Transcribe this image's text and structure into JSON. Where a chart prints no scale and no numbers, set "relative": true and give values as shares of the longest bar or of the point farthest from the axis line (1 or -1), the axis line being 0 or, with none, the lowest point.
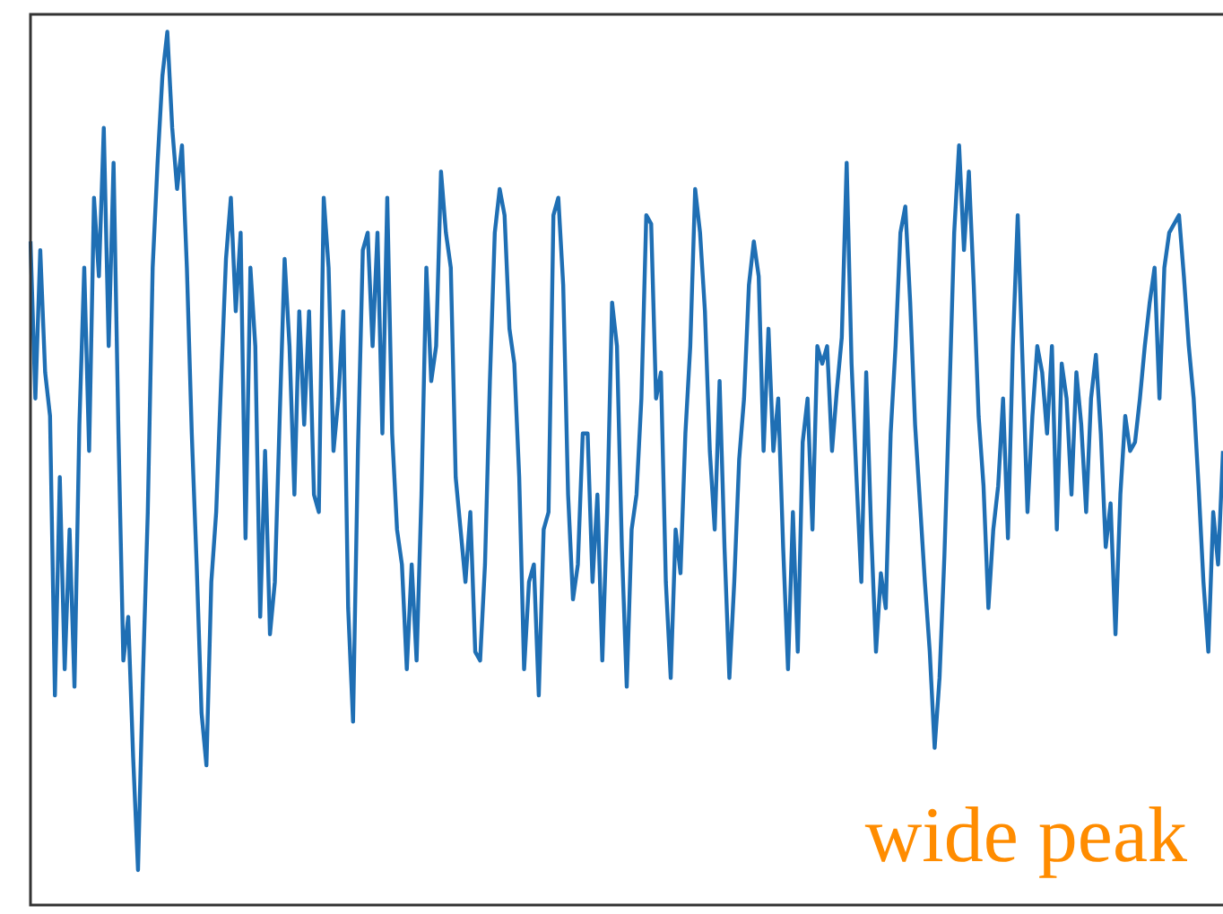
{
  "chart_data": {
    "type": "line",
    "relative": true,
    "categories": [
      null,
      null,
      null,
      null,
      null,
      null,
      null,
      null,
      null,
      null,
      null,
      null,
      null,
      null,
      null,
      null,
      null,
      null,
      null,
      null,
      null,
      null,
      null,
      null,
      null,
      null,
      null,
      null,
      null,
      null,
      null,
      null,
      null,
      null,
      null,
      null,
      null,
      null,
      null,
      null,
      null,
      null,
      null,
      null,
      null,
      null,
      null,
      null,
      null,
      null,
      null,
      null,
      null,
      null,
      null,
      null,
      null,
      null,
      null,
      null,
      null,
      null,
      null,
      null,
      null,
      null,
      null,
      null,
      null,
      null,
      null,
      null,
      null,
      null,
      null,
      null,
      null,
      null,
      null,
      null,
      null,
      null,
      null,
      null,
      null,
      null,
      null,
      null,
      null,
      null,
      null,
      null,
      null,
      null,
      null,
      null,
      null,
      null,
      null,
      null,
      null,
      null,
      null,
      null,
      null,
      null,
      null,
      null,
      null,
      null,
      null,
      null,
      null,
      null,
      null,
      null,
      null,
      null,
      null,
      null,
      null,
      null,
      null,
      null,
      null,
      null,
      null,
      null,
      null,
      null,
      null,
      null,
      null,
      null,
      null,
      null,
      null,
      null,
      null,
      null,
      null,
      null,
      null,
      null,
      null,
      null,
      null,
      null,
      null,
      null,
      null,
      null,
      null,
      null,
      null,
      null,
      null,
      null,
      null,
      null,
      null,
      null,
      null,
      null,
      null,
      null,
      null,
      null,
      null,
      null,
      null,
      null,
      null,
      null,
      null,
      null,
      null,
      null,
      null,
      null,
      null,
      null,
      null,
      null,
      null,
      null,
      null,
      null,
      null,
      null,
      null,
      null,
      null,
      null,
      null,
      null,
      null,
      null,
      null,
      null,
      null,
      null,
      null,
      null,
      null,
      null,
      null,
      null,
      null,
      null,
      null,
      null,
      null,
      null,
      null,
      null,
      null,
      null,
      null,
      null,
      null,
      null,
      null,
      null,
      null,
      null,
      null,
      null,
      null,
      null,
      null,
      null,
      null,
      null,
      null,
      null,
      null,
      null,
      null,
      null,
      null,
      null,
      null,
      null,
      null
    ],
    "series": [
      {
        "color": "#1f6fb4",
        "values": [
          0.76,
          0.58,
          0.75,
          0.61,
          0.56,
          0.24,
          0.49,
          0.27,
          0.43,
          0.25,
          0.55,
          0.73,
          0.52,
          0.81,
          0.72,
          0.89,
          0.64,
          0.85,
          0.54,
          0.28,
          0.33,
          0.17,
          0.04,
          0.26,
          0.45,
          0.73,
          0.85,
          0.95,
          1,
          0.89,
          0.82,
          0.87,
          0.73,
          0.54,
          0.39,
          0.22,
          0.16,
          0.37,
          0.45,
          0.6,
          0.74,
          0.81,
          0.68,
          0.77,
          0.42,
          0.73,
          0.64,
          0.33,
          0.52,
          0.31,
          0.37,
          0.56,
          0.74,
          0.64,
          0.47,
          0.68,
          0.55,
          0.68,
          0.47,
          0.45,
          0.81,
          0.73,
          0.52,
          0.58,
          0.68,
          0.34,
          0.21,
          0.52,
          0.75,
          0.77,
          0.64,
          0.77,
          0.54,
          0.81,
          0.54,
          0.43,
          0.39,
          0.27,
          0.39,
          0.28,
          0.47,
          0.73,
          0.6,
          0.64,
          0.84,
          0.77,
          0.73,
          0.49,
          0.43,
          0.37,
          0.45,
          0.29,
          0.28,
          0.39,
          0.6,
          0.77,
          0.82,
          0.79,
          0.66,
          0.62,
          0.49,
          0.27,
          0.37,
          0.39,
          0.24,
          0.43,
          0.45,
          0.79,
          0.81,
          0.71,
          0.47,
          0.35,
          0.39,
          0.54,
          0.54,
          0.37,
          0.47,
          0.28,
          0.45,
          0.69,
          0.64,
          0.41,
          0.25,
          0.43,
          0.47,
          0.58,
          0.79,
          0.78,
          0.58,
          0.61,
          0.37,
          0.26,
          0.43,
          0.38,
          0.54,
          0.64,
          0.82,
          0.77,
          0.68,
          0.52,
          0.43,
          0.6,
          0.41,
          0.26,
          0.37,
          0.51,
          0.58,
          0.71,
          0.76,
          0.72,
          0.52,
          0.66,
          0.52,
          0.58,
          0.41,
          0.27,
          0.45,
          0.29,
          0.53,
          0.58,
          0.43,
          0.64,
          0.62,
          0.64,
          0.52,
          0.59,
          0.65,
          0.85,
          0.62,
          0.49,
          0.37,
          0.61,
          0.43,
          0.29,
          0.38,
          0.34,
          0.54,
          0.64,
          0.77,
          0.8,
          0.69,
          0.55,
          0.46,
          0.37,
          0.29,
          0.18,
          0.26,
          0.4,
          0.58,
          0.77,
          0.87,
          0.75,
          0.84,
          0.71,
          0.56,
          0.48,
          0.34,
          0.43,
          0.48,
          0.58,
          0.42,
          0.64,
          0.79,
          0.62,
          0.45,
          0.56,
          0.64,
          0.61,
          0.54,
          0.64,
          0.43,
          0.62,
          0.58,
          0.47,
          0.61,
          0.55,
          0.45,
          0.58,
          0.63,
          0.54,
          0.41,
          0.46,
          0.31,
          0.47,
          0.56,
          0.52,
          0.53,
          0.58,
          0.64,
          0.69,
          0.73,
          0.58,
          0.73,
          0.77,
          0.78,
          0.79,
          0.72,
          0.64,
          0.58,
          0.48,
          0.37,
          0.29,
          0.45,
          0.39,
          0.52
        ]
      }
    ],
    "annotations": [
      "wide peak"
    ]
  }
}
